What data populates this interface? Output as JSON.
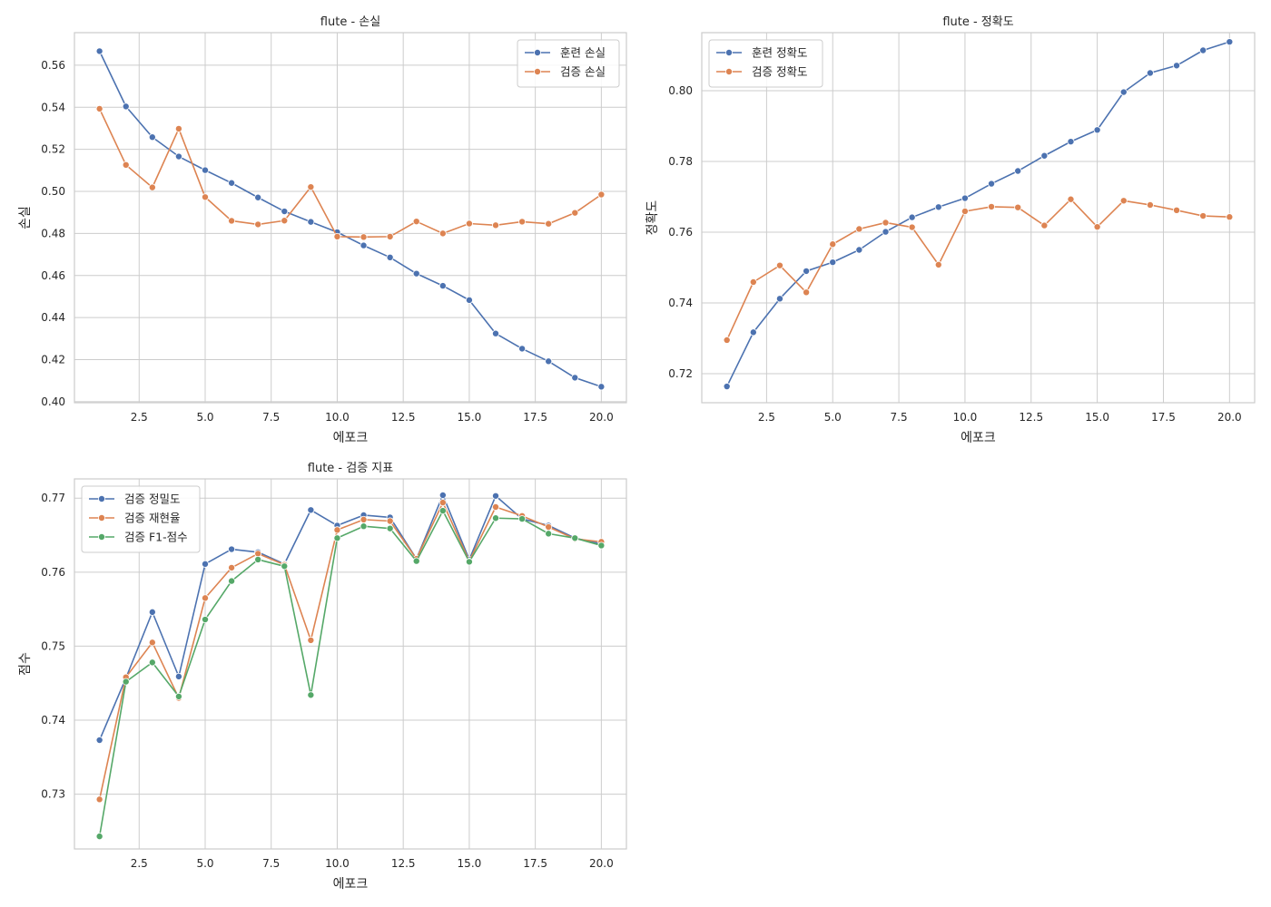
{
  "chart_data": [
    {
      "type": "line",
      "title": "flute - 손실",
      "xlabel": "에포크",
      "ylabel": "손실",
      "xlim": [
        0.05,
        20.95
      ],
      "ylim": [
        0.3995,
        0.5755
      ],
      "xticks": [
        2.5,
        5.0,
        7.5,
        10.0,
        12.5,
        15.0,
        17.5,
        20.0
      ],
      "xtick_labels": [
        "2.5",
        "5.0",
        "7.5",
        "10.0",
        "12.5",
        "15.0",
        "17.5",
        "20.0"
      ],
      "yticks": [
        0.4,
        0.42,
        0.44,
        0.46,
        0.48,
        0.5,
        0.52,
        0.54,
        0.56
      ],
      "ytick_labels": [
        "0.40",
        "0.42",
        "0.44",
        "0.46",
        "0.48",
        "0.50",
        "0.52",
        "0.54",
        "0.56"
      ],
      "grid": true,
      "legend_position": "top-right",
      "x": [
        1,
        2,
        3,
        4,
        5,
        6,
        7,
        8,
        9,
        10,
        11,
        12,
        13,
        14,
        15,
        16,
        17,
        18,
        19,
        20
      ],
      "series": [
        {
          "name": "훈련 손실",
          "color": "#4c72b0",
          "values": [
            0.5667,
            0.5404,
            0.5258,
            0.5166,
            0.5101,
            0.504,
            0.4971,
            0.4905,
            0.4855,
            0.4806,
            0.4743,
            0.4686,
            0.4609,
            0.4551,
            0.4483,
            0.4324,
            0.4252,
            0.4192,
            0.4114,
            0.4071
          ]
        },
        {
          "name": "검증 손실",
          "color": "#dd8452",
          "values": [
            0.5393,
            0.5126,
            0.5019,
            0.5298,
            0.4973,
            0.486,
            0.4843,
            0.4861,
            0.5021,
            0.4785,
            0.4783,
            0.4785,
            0.4857,
            0.48,
            0.4847,
            0.4839,
            0.4856,
            0.4846,
            0.4898,
            0.4985
          ]
        }
      ]
    },
    {
      "type": "line",
      "title": "flute - 정확도",
      "xlabel": "에포크",
      "ylabel": "정확도",
      "xlim": [
        0.05,
        20.95
      ],
      "ylim": [
        0.7118,
        0.8164
      ],
      "xticks": [
        2.5,
        5.0,
        7.5,
        10.0,
        12.5,
        15.0,
        17.5,
        20.0
      ],
      "xtick_labels": [
        "2.5",
        "5.0",
        "7.5",
        "10.0",
        "12.5",
        "15.0",
        "17.5",
        "20.0"
      ],
      "yticks": [
        0.72,
        0.74,
        0.76,
        0.78,
        0.8
      ],
      "ytick_labels": [
        "0.72",
        "0.74",
        "0.76",
        "0.78",
        "0.80"
      ],
      "grid": true,
      "legend_position": "top-left",
      "x": [
        1,
        2,
        3,
        4,
        5,
        6,
        7,
        8,
        9,
        10,
        11,
        12,
        13,
        14,
        15,
        16,
        17,
        18,
        19,
        20
      ],
      "series": [
        {
          "name": "훈련 정확도",
          "color": "#4c72b0",
          "values": [
            0.7164,
            0.7317,
            0.7412,
            0.749,
            0.7515,
            0.755,
            0.7601,
            0.7642,
            0.7671,
            0.7696,
            0.7737,
            0.7773,
            0.7816,
            0.7856,
            0.7889,
            0.7996,
            0.805,
            0.8071,
            0.8114,
            0.8138
          ]
        },
        {
          "name": "검증 정확도",
          "color": "#dd8452",
          "values": [
            0.7295,
            0.7459,
            0.7506,
            0.743,
            0.7566,
            0.7609,
            0.7627,
            0.7614,
            0.7508,
            0.7659,
            0.7672,
            0.767,
            0.7619,
            0.7693,
            0.7615,
            0.7689,
            0.7677,
            0.7662,
            0.7646,
            0.7643
          ]
        }
      ]
    },
    {
      "type": "line",
      "title": "flute - 검증 지표",
      "xlabel": "에포크",
      "ylabel": "점수",
      "xlim": [
        0.05,
        20.95
      ],
      "ylim": [
        0.7226,
        0.7726
      ],
      "xticks": [
        2.5,
        5.0,
        7.5,
        10.0,
        12.5,
        15.0,
        17.5,
        20.0
      ],
      "xtick_labels": [
        "2.5",
        "5.0",
        "7.5",
        "10.0",
        "12.5",
        "15.0",
        "17.5",
        "20.0"
      ],
      "yticks": [
        0.73,
        0.74,
        0.75,
        0.76,
        0.77
      ],
      "ytick_labels": [
        "0.73",
        "0.74",
        "0.75",
        "0.76",
        "0.77"
      ],
      "grid": true,
      "legend_position": "top-left",
      "x": [
        1,
        2,
        3,
        4,
        5,
        6,
        7,
        8,
        9,
        10,
        11,
        12,
        13,
        14,
        15,
        16,
        17,
        18,
        19,
        20
      ],
      "series": [
        {
          "name": "검증 정밀도",
          "color": "#4c72b0",
          "values": [
            0.7373,
            0.7457,
            0.7546,
            0.7459,
            0.7611,
            0.7631,
            0.7627,
            0.7611,
            0.7684,
            0.7663,
            0.7677,
            0.7674,
            0.7618,
            0.7704,
            0.7617,
            0.7703,
            0.7672,
            0.7663,
            0.7646,
            0.7638
          ]
        },
        {
          "name": "검증 재현율",
          "color": "#dd8452",
          "values": [
            0.7293,
            0.7458,
            0.7505,
            0.743,
            0.7565,
            0.7606,
            0.7625,
            0.761,
            0.7508,
            0.7657,
            0.7671,
            0.7669,
            0.7618,
            0.7694,
            0.7615,
            0.7688,
            0.7676,
            0.7661,
            0.7645,
            0.7641
          ]
        },
        {
          "name": "검증 F1-점수",
          "color": "#55a868",
          "values": [
            0.7243,
            0.7452,
            0.7478,
            0.7432,
            0.7536,
            0.7588,
            0.7617,
            0.7608,
            0.7434,
            0.7646,
            0.7662,
            0.7659,
            0.7615,
            0.7683,
            0.7614,
            0.7673,
            0.7672,
            0.7652,
            0.7646,
            0.7636
          ]
        }
      ]
    }
  ]
}
